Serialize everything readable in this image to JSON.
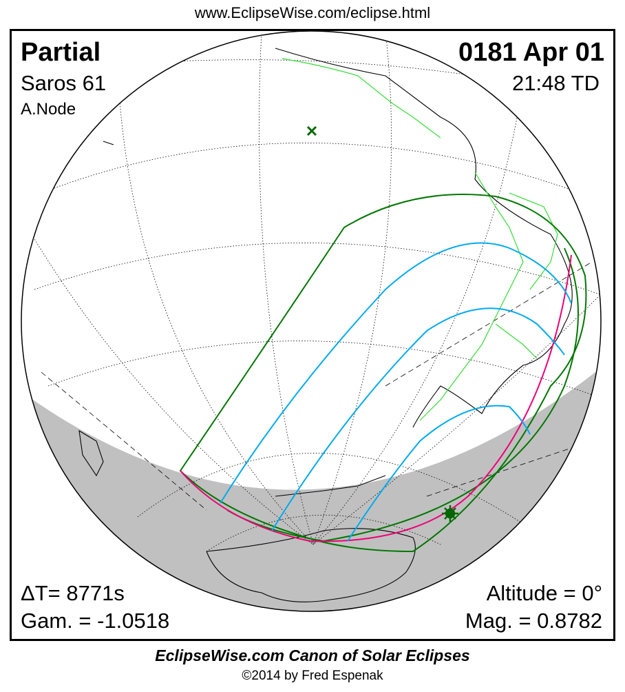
{
  "header": {
    "url": "www.EclipseWise.com/eclipse.html"
  },
  "eclipse": {
    "type": "Partial",
    "date": "0181 Apr 01",
    "saros": "Saros  61",
    "time": "21:48 TD",
    "node": "A.Node",
    "delta_t": "ΔT=   8771s",
    "gamma": "Gam. = -1.0518",
    "altitude": "Altitude =  0°",
    "magnitude": "Mag. = 0.8782"
  },
  "footer": {
    "title": "EclipseWise.com Canon of Solar Eclipses",
    "copyright": "©2014 by Fred Espenak"
  },
  "colors": {
    "penumbra_limits": "#007700",
    "magnitude_curves": "#00aaee",
    "max_eclipse_curve": "#ee0077",
    "borders": "#33dd33",
    "night_shade": "#c0c0c0"
  },
  "markers": {
    "subsolar_point": "x-mark-icon",
    "greatest_eclipse": "star-icon"
  }
}
